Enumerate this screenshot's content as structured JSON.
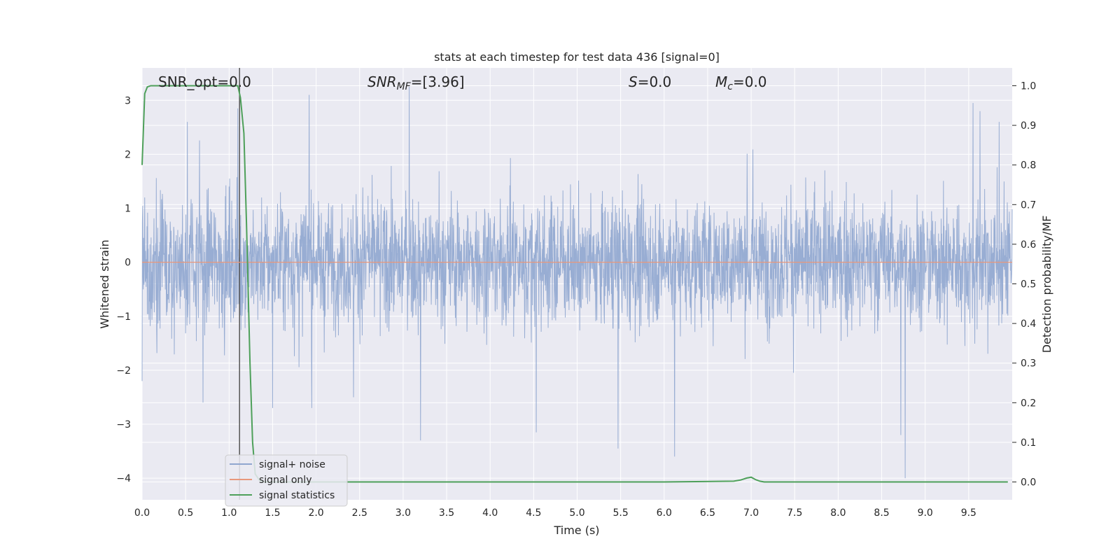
{
  "chart_data": {
    "type": "line",
    "title": "stats at each timestep for test data 436 [signal=0]",
    "xlabel": "Time (s)",
    "ylabel": "Whitened strain",
    "y2label": "Detection probability/MF",
    "xlim": [
      0.0,
      10.0
    ],
    "ylim": [
      -4.4,
      3.6
    ],
    "y2lim": [
      -0.045,
      1.045
    ],
    "x_ticks": [
      "0.0",
      "0.5",
      "1.0",
      "1.5",
      "2.0",
      "2.5",
      "3.0",
      "3.5",
      "4.0",
      "4.5",
      "5.0",
      "5.5",
      "6.0",
      "6.5",
      "7.0",
      "7.5",
      "8.0",
      "8.5",
      "9.0",
      "9.5"
    ],
    "y_ticks": [
      "3",
      "2",
      "1",
      "0",
      "−1",
      "−2",
      "−3",
      "−4"
    ],
    "y2_ticks": [
      "1.0",
      "0.9",
      "0.8",
      "0.7",
      "0.6",
      "0.5",
      "0.4",
      "0.3",
      "0.2",
      "0.1",
      "0.0"
    ],
    "grid": true,
    "legend_position": "lower-left",
    "annotations": {
      "snr_opt": "SNR_opt=0.0",
      "snr_mf_name": "SNR",
      "snr_mf_sub": "MF",
      "snr_mf_value": "=[3.96]",
      "s_name": "S",
      "s_value": "=0.0",
      "mc_name": "M",
      "mc_sub": "c",
      "mc_value": "=0.0"
    },
    "vline_x": 1.12,
    "series": [
      {
        "name": "signal+ noise",
        "color": "#8fa6cf",
        "axis": "left",
        "description": "whitened noise, roughly within ±2.5, spikes up to 3.2 and down to -4.0",
        "extremes": [
          {
            "x": 0.0,
            "y": -2.2
          },
          {
            "x": 0.52,
            "y": 2.6
          },
          {
            "x": 0.7,
            "y": -2.6
          },
          {
            "x": 1.1,
            "y": 2.85
          },
          {
            "x": 1.5,
            "y": -2.7
          },
          {
            "x": 1.92,
            "y": 3.1
          },
          {
            "x": 1.95,
            "y": -2.7
          },
          {
            "x": 2.43,
            "y": -2.5
          },
          {
            "x": 3.07,
            "y": 3.25
          },
          {
            "x": 3.2,
            "y": -3.3
          },
          {
            "x": 4.53,
            "y": -3.15
          },
          {
            "x": 5.47,
            "y": -3.45
          },
          {
            "x": 6.12,
            "y": -3.6
          },
          {
            "x": 8.72,
            "y": -3.2
          },
          {
            "x": 8.77,
            "y": -4.0
          },
          {
            "x": 9.55,
            "y": 2.95
          },
          {
            "x": 9.63,
            "y": 2.8
          },
          {
            "x": 9.85,
            "y": 2.6
          }
        ]
      },
      {
        "name": "signal only",
        "color": "#e8977c",
        "axis": "left",
        "x": [
          0.0,
          10.0
        ],
        "y": [
          0.0,
          0.0
        ]
      },
      {
        "name": "signal statistics",
        "color": "#4ea05a",
        "axis": "right",
        "x": [
          0.0,
          0.03,
          0.06,
          0.1,
          0.2,
          0.4,
          0.8,
          1.1,
          1.13,
          1.17,
          1.2,
          1.24,
          1.27,
          1.3,
          1.35,
          1.4,
          2.0,
          4.0,
          6.0,
          6.8,
          6.88,
          6.95,
          7.0,
          7.05,
          7.1,
          7.15,
          7.5,
          8.0,
          9.0,
          9.95
        ],
        "y": [
          0.8,
          0.98,
          0.997,
          1.0,
          1.0,
          1.0,
          1.0,
          1.0,
          0.97,
          0.88,
          0.65,
          0.3,
          0.1,
          0.02,
          0.004,
          0.0,
          0.0,
          0.0,
          0.0,
          0.002,
          0.005,
          0.01,
          0.012,
          0.006,
          0.002,
          0.0,
          0.0,
          0.0,
          0.0,
          0.0
        ]
      }
    ]
  }
}
